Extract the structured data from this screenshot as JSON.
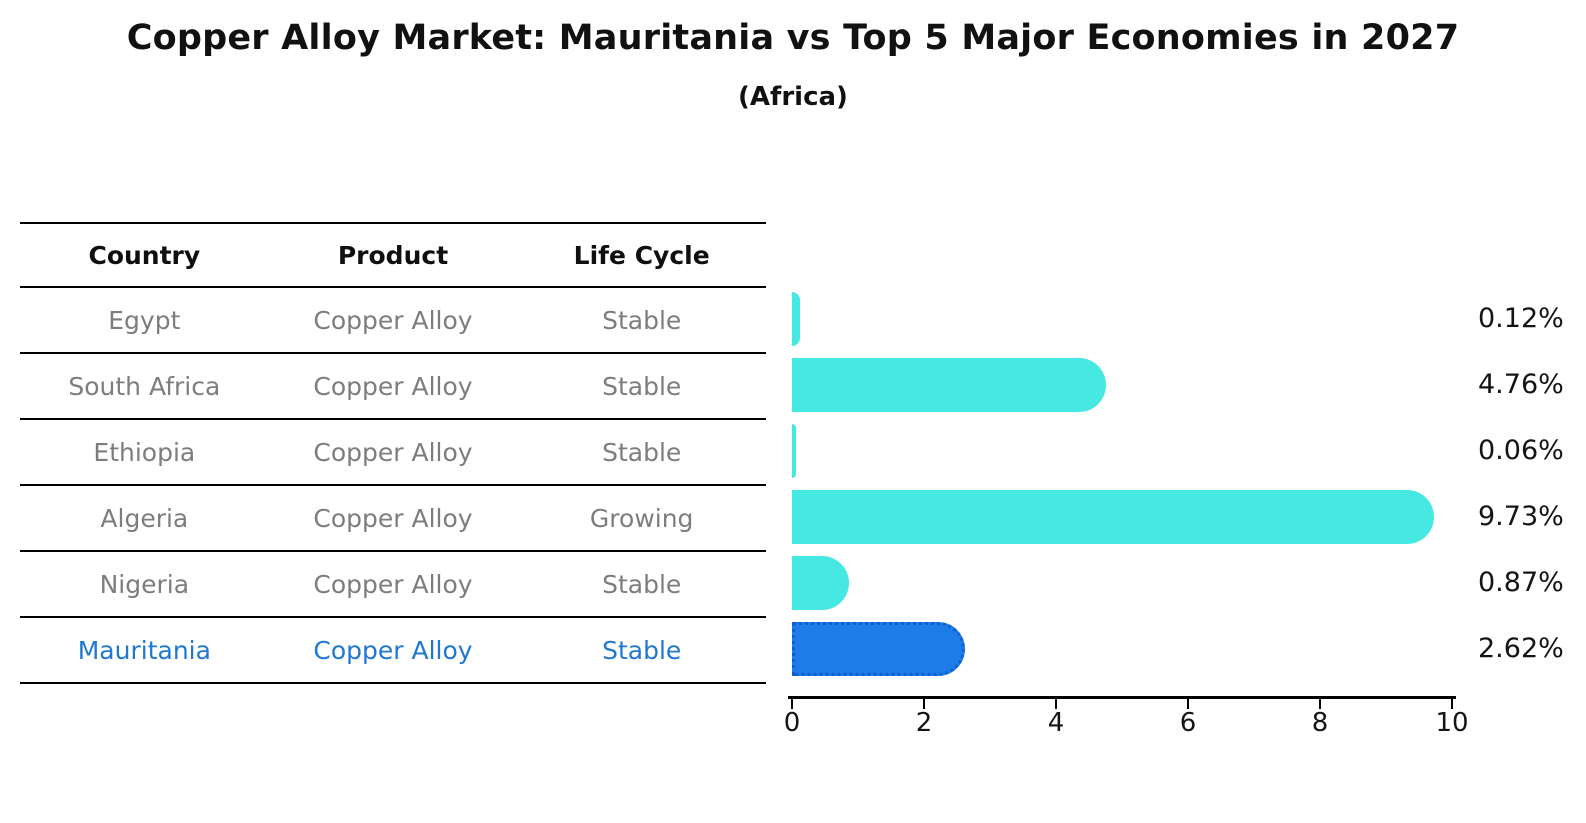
{
  "title": "Copper Alloy Market: Mauritania vs Top 5 Major Economies in 2027",
  "subtitle": "(Africa)",
  "table": {
    "headers": [
      "Country",
      "Product",
      "Life Cycle"
    ],
    "rows": [
      {
        "country": "Egypt",
        "product": "Copper Alloy",
        "life_cycle": "Stable",
        "highlight": false
      },
      {
        "country": "South Africa",
        "product": "Copper Alloy",
        "life_cycle": "Stable",
        "highlight": false
      },
      {
        "country": "Ethiopia",
        "product": "Copper Alloy",
        "life_cycle": "Stable",
        "highlight": false
      },
      {
        "country": "Algeria",
        "product": "Copper Alloy",
        "life_cycle": "Growing",
        "highlight": false
      },
      {
        "country": "Nigeria",
        "product": "Copper Alloy",
        "life_cycle": "Stable",
        "highlight": false
      },
      {
        "country": "Mauritania",
        "product": "Copper Alloy",
        "life_cycle": "Stable",
        "highlight": true
      }
    ]
  },
  "chart_data": {
    "type": "bar",
    "orientation": "horizontal",
    "title": "Copper Alloy Market: Mauritania vs Top 5 Major Economies in 2027",
    "subtitle": "(Africa)",
    "categories": [
      "Egypt",
      "South Africa",
      "Ethiopia",
      "Algeria",
      "Nigeria",
      "Mauritania"
    ],
    "values": [
      0.12,
      4.76,
      0.06,
      9.73,
      0.87,
      2.62
    ],
    "value_labels": [
      "0.12%",
      "4.76%",
      "0.06%",
      "9.73%",
      "0.87%",
      "2.62%"
    ],
    "xlim": [
      0,
      10
    ],
    "xticks": [
      0,
      2,
      4,
      6,
      8,
      10
    ],
    "grid": false,
    "legend": "none",
    "bar_color": "#46e8e2",
    "highlight_bar_color": "#1d7ce8",
    "highlight_border_color": "#0f5fd0",
    "highlight_index": 5,
    "highlight_text_color": "#1f78d1"
  },
  "colors": {
    "background": "#ffffff",
    "table_text": "#7d7d7d",
    "header_text": "#0f0f0f",
    "line": "#000000"
  }
}
